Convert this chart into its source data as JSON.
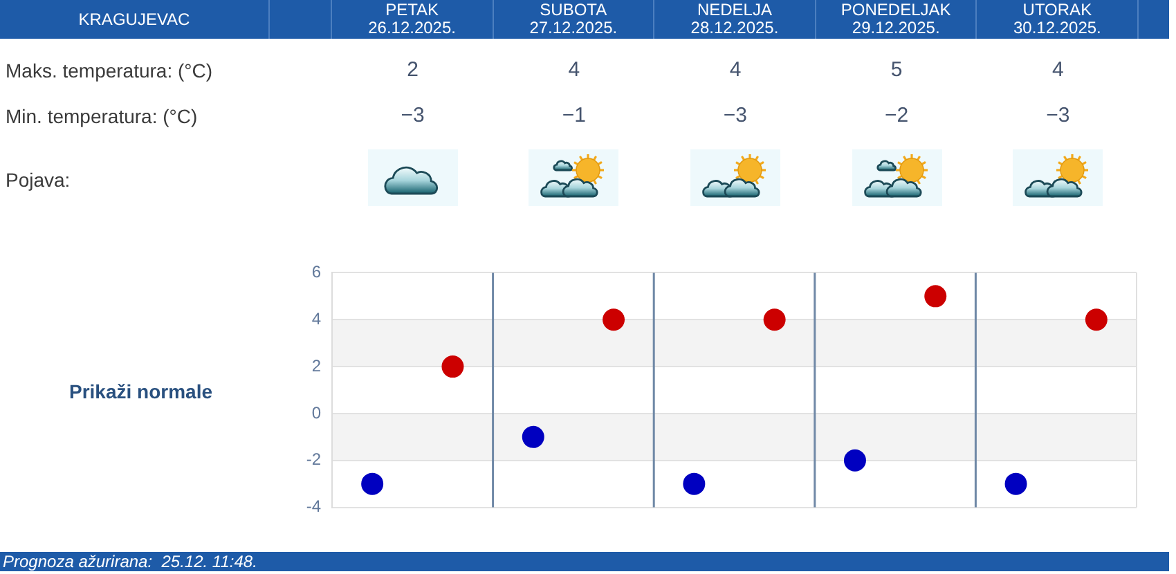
{
  "chart_data": [
    {
      "type": "other",
      "title": "KRAGUJEVAC",
      "categories": [
        "PETAK 26.12.2025.",
        "SUBOTA 27.12.2025.",
        "NEDELJA 28.12.2025.",
        "PONEDELJAK 29.12.2025.",
        "UTORAK 30.12.2025."
      ],
      "series": [
        {
          "values": [
            2,
            4,
            4,
            5,
            4
          ]
        },
        {
          "values": [
            -3,
            -1,
            -3,
            -2,
            -3
          ]
        }
      ],
      "data_labels": true,
      "annotations": [
        "Maks. temperatura: (°C)",
        "Min. temperatura: (°C)",
        "Pojava:"
      ]
    },
    {
      "type": "scatter",
      "categories": [
        null,
        null,
        null,
        null,
        null
      ],
      "series": [
        {
          "color": "#cc0000",
          "values": [
            2,
            4,
            4,
            5,
            4
          ]
        },
        {
          "color": "#0000c0",
          "values": [
            -3,
            -1,
            -3,
            -2,
            -3
          ]
        }
      ],
      "ylim": [
        -4,
        6
      ],
      "yticks": [
        -4,
        -2,
        0,
        2,
        4,
        6
      ],
      "grid": true,
      "marker": "circle",
      "annotations": [
        "Prikaži normale",
        "Prognoza ažurirana:  25.12. 11:48."
      ]
    }
  ]
}
